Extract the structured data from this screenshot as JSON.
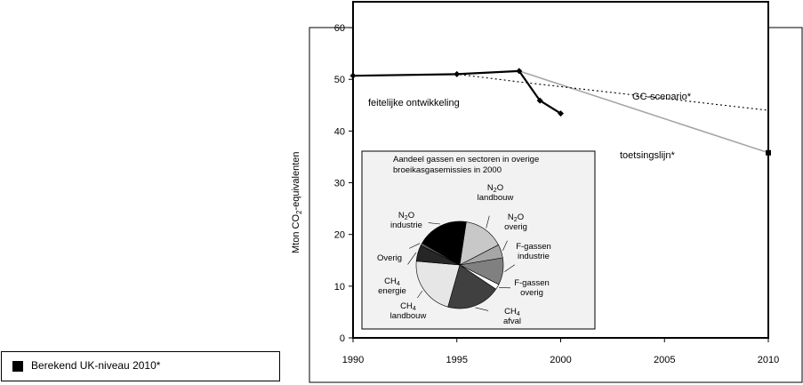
{
  "legend": {
    "label": "Berekend UK-niveau 2010*"
  },
  "chart_data": {
    "type": "line",
    "ylabel": "Mton CO2-equivalenten",
    "ylabel_main": "Mton CO",
    "ylabel_sub": "2",
    "ylabel_tail": "-equivalenten",
    "xlim": [
      1990,
      2010
    ],
    "ylim": [
      0,
      65
    ],
    "x_ticks": [
      "1990",
      "1995",
      "2000",
      "2005",
      "2010"
    ],
    "y_ticks": [
      "0",
      "10",
      "20",
      "30",
      "40",
      "50",
      "60"
    ],
    "grid": false,
    "series": [
      {
        "name": "feitelijke ontwikkeling",
        "color": "#000000",
        "style": "solid-markers",
        "points": [
          [
            1990,
            50.7
          ],
          [
            1995,
            51.0
          ],
          [
            1998,
            51.6
          ],
          [
            1999,
            45.9
          ],
          [
            2000,
            43.4
          ]
        ]
      },
      {
        "name": "GC-scenario*",
        "color": "#000000",
        "style": "dotted",
        "points": [
          [
            1990,
            50.7
          ],
          [
            1995,
            51.0
          ],
          [
            1998,
            49.5
          ],
          [
            2010,
            44.0
          ]
        ]
      },
      {
        "name": "toetsingslijn*",
        "color": "#a6a6a6",
        "style": "solid",
        "points": [
          [
            1998,
            51.6
          ],
          [
            2010,
            35.8
          ]
        ]
      }
    ],
    "marker_2010": {
      "label": "Berekend UK-niveau 2010*",
      "x": 2010,
      "y": 35.8
    },
    "pie": {
      "title_line1": "Aandeel gassen en sectoren in overige",
      "title_line2": "broeikasgasemissies in 2000",
      "slices": [
        {
          "key": "n2o_landbouw",
          "label_top": "N2O",
          "l1_main": "N",
          "l1_sub": "2",
          "l1_tail": "O",
          "l2": "landbouw",
          "value": 15,
          "color": "#c8c8c8"
        },
        {
          "key": "n2o_overig",
          "l1_main": "N",
          "l1_sub": "2",
          "l1_tail": "O",
          "l2": "overig",
          "value": 5,
          "color": "#a6a6a6"
        },
        {
          "key": "fgassen_industrie",
          "l1_main": "F-gassen",
          "l1_sub": "",
          "l1_tail": "",
          "l2": "industrie",
          "value": 10,
          "color": "#808080"
        },
        {
          "key": "fgassen_overig",
          "l1_main": "F-gassen",
          "l1_sub": "",
          "l1_tail": "",
          "l2": "overig",
          "value": 2,
          "color": "#ffffff"
        },
        {
          "key": "ch4_afval",
          "l1_main": "CH",
          "l1_sub": "4",
          "l1_tail": "",
          "l2": "afval",
          "value": 20,
          "color": "#404040"
        },
        {
          "key": "ch4_landbouw",
          "l1_main": "CH",
          "l1_sub": "4",
          "l1_tail": "",
          "l2": "landbouw",
          "value": 22,
          "color": "#e6e6e6"
        },
        {
          "key": "ch4_energie",
          "l1_main": "CH",
          "l1_sub": "4",
          "l1_tail": "",
          "l2": "energie",
          "value": 6,
          "color": "#262626"
        },
        {
          "key": "overig",
          "l1_main": "Overig",
          "l1_sub": "",
          "l1_tail": "",
          "l2": "",
          "value": 1,
          "color": "#595959"
        },
        {
          "key": "n2o_industrie",
          "l1_main": "N",
          "l1_sub": "2",
          "l1_tail": "O",
          "l2": "industrie",
          "value": 19,
          "color": "#000000"
        }
      ]
    }
  }
}
